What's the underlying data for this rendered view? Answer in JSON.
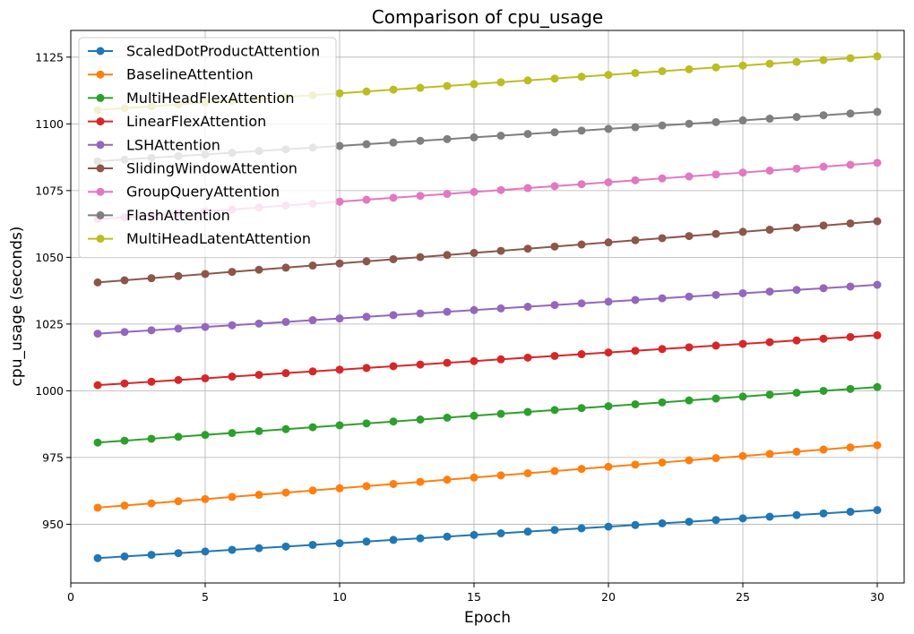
{
  "chart_data": {
    "type": "line",
    "title": "Comparison of cpu_usage",
    "xlabel": "Epoch",
    "ylabel": "cpu_usage (seconds)",
    "xlim": [
      0,
      31
    ],
    "ylim": [
      928,
      1135
    ],
    "xticks": [
      0,
      5,
      10,
      15,
      20,
      25,
      30
    ],
    "yticks": [
      950,
      975,
      1000,
      1025,
      1050,
      1075,
      1100,
      1125
    ],
    "grid": true,
    "legend_placement": "upper-left",
    "x": [
      1,
      2,
      3,
      4,
      5,
      6,
      7,
      8,
      9,
      10,
      11,
      12,
      13,
      14,
      15,
      16,
      17,
      18,
      19,
      20,
      21,
      22,
      23,
      24,
      25,
      26,
      27,
      28,
      29,
      30
    ],
    "series": [
      {
        "name": "ScaledDotProductAttention",
        "color": "#1f77b4",
        "start": 937.3,
        "end": 955.3
      },
      {
        "name": "BaselineAttention",
        "color": "#ff7f0e",
        "start": 956.2,
        "end": 979.6
      },
      {
        "name": "MultiHeadFlexAttention",
        "color": "#2ca02c",
        "start": 980.6,
        "end": 1001.4
      },
      {
        "name": "LinearFlexAttention",
        "color": "#d62728",
        "start": 1002.1,
        "end": 1020.8
      },
      {
        "name": "LSHAttention",
        "color": "#9467bd",
        "start": 1021.4,
        "end": 1039.7
      },
      {
        "name": "SlidingWindowAttention",
        "color": "#8c564b",
        "start": 1040.6,
        "end": 1063.5
      },
      {
        "name": "GroupQueryAttention",
        "color": "#e377c2",
        "start": 1064.3,
        "end": 1085.4
      },
      {
        "name": "FlashAttention",
        "color": "#7f7f7f",
        "start": 1086.0,
        "end": 1104.5
      },
      {
        "name": "MultiHeadLatentAttention",
        "color": "#bcbd22",
        "start": 1105.2,
        "end": 1125.3
      }
    ]
  }
}
